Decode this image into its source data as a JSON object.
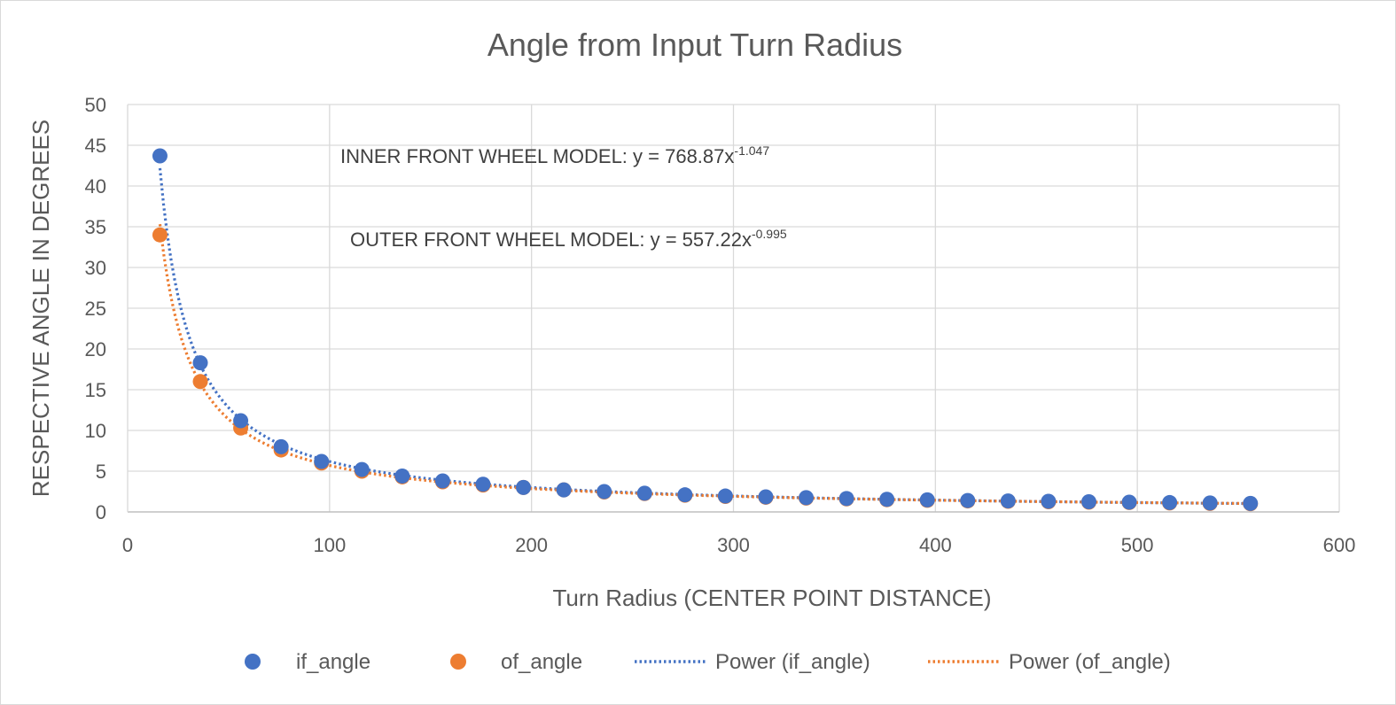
{
  "chart_data": {
    "type": "scatter",
    "title": "Angle from Input Turn Radius",
    "xlabel": "Turn Radius (CENTER POINT DISTANCE)",
    "ylabel": "RESPECTIVE ANGLE IN DEGREES",
    "xlim": [
      0,
      600
    ],
    "ylim": [
      0,
      50
    ],
    "xticks": [
      "0",
      "100",
      "200",
      "300",
      "400",
      "500",
      "600"
    ],
    "yticks": [
      "0",
      "5",
      "10",
      "15",
      "20",
      "25",
      "30",
      "35",
      "40",
      "45",
      "50"
    ],
    "grid": true,
    "legend_position": "bottom",
    "colors": {
      "if": "#4472c4",
      "of": "#ed7d31"
    },
    "series": [
      {
        "name": "if_angle",
        "color": "#4472c4",
        "x": [
          16,
          36,
          56,
          76,
          96,
          116,
          136,
          156,
          176,
          196,
          216,
          236,
          256,
          276,
          296,
          316,
          336,
          356,
          376,
          396,
          416,
          436,
          456,
          476,
          496,
          516,
          536,
          556
        ],
        "y": [
          43.7,
          18.3,
          11.2,
          8.0,
          6.2,
          5.2,
          4.4,
          3.8,
          3.4,
          3.0,
          2.7,
          2.5,
          2.3,
          2.1,
          1.95,
          1.85,
          1.75,
          1.65,
          1.55,
          1.48,
          1.4,
          1.35,
          1.3,
          1.25,
          1.2,
          1.15,
          1.1,
          1.05
        ]
      },
      {
        "name": "of_angle",
        "color": "#ed7d31",
        "x": [
          16,
          36,
          56,
          76,
          96,
          116,
          136,
          156,
          176,
          196,
          216,
          236,
          256,
          276,
          296,
          316,
          336,
          356,
          376,
          396,
          416,
          436,
          456,
          476,
          496,
          516,
          536,
          556
        ],
        "y": [
          34.0,
          16.0,
          10.3,
          7.6,
          6.0,
          5.0,
          4.3,
          3.7,
          3.3,
          3.0,
          2.7,
          2.45,
          2.25,
          2.05,
          1.9,
          1.8,
          1.7,
          1.6,
          1.5,
          1.42,
          1.35,
          1.3,
          1.25,
          1.2,
          1.15,
          1.1,
          1.05,
          1.0
        ]
      }
    ],
    "trendlines": [
      {
        "name": "Power (if_angle)",
        "color": "#4472c4",
        "a": 768.87,
        "b": -1.047,
        "x_range": [
          16,
          556
        ]
      },
      {
        "name": "Power (of_angle)",
        "color": "#ed7d31",
        "a": 557.22,
        "b": -0.995,
        "x_range": [
          16,
          556
        ]
      }
    ],
    "annotations": [
      {
        "text": "INNER FRONT WHEEL MODEL: y = 768.87x",
        "sup": "-1.047"
      },
      {
        "text": "OUTER FRONT WHEEL MODEL: y = 557.22x",
        "sup": "-0.995"
      }
    ]
  }
}
